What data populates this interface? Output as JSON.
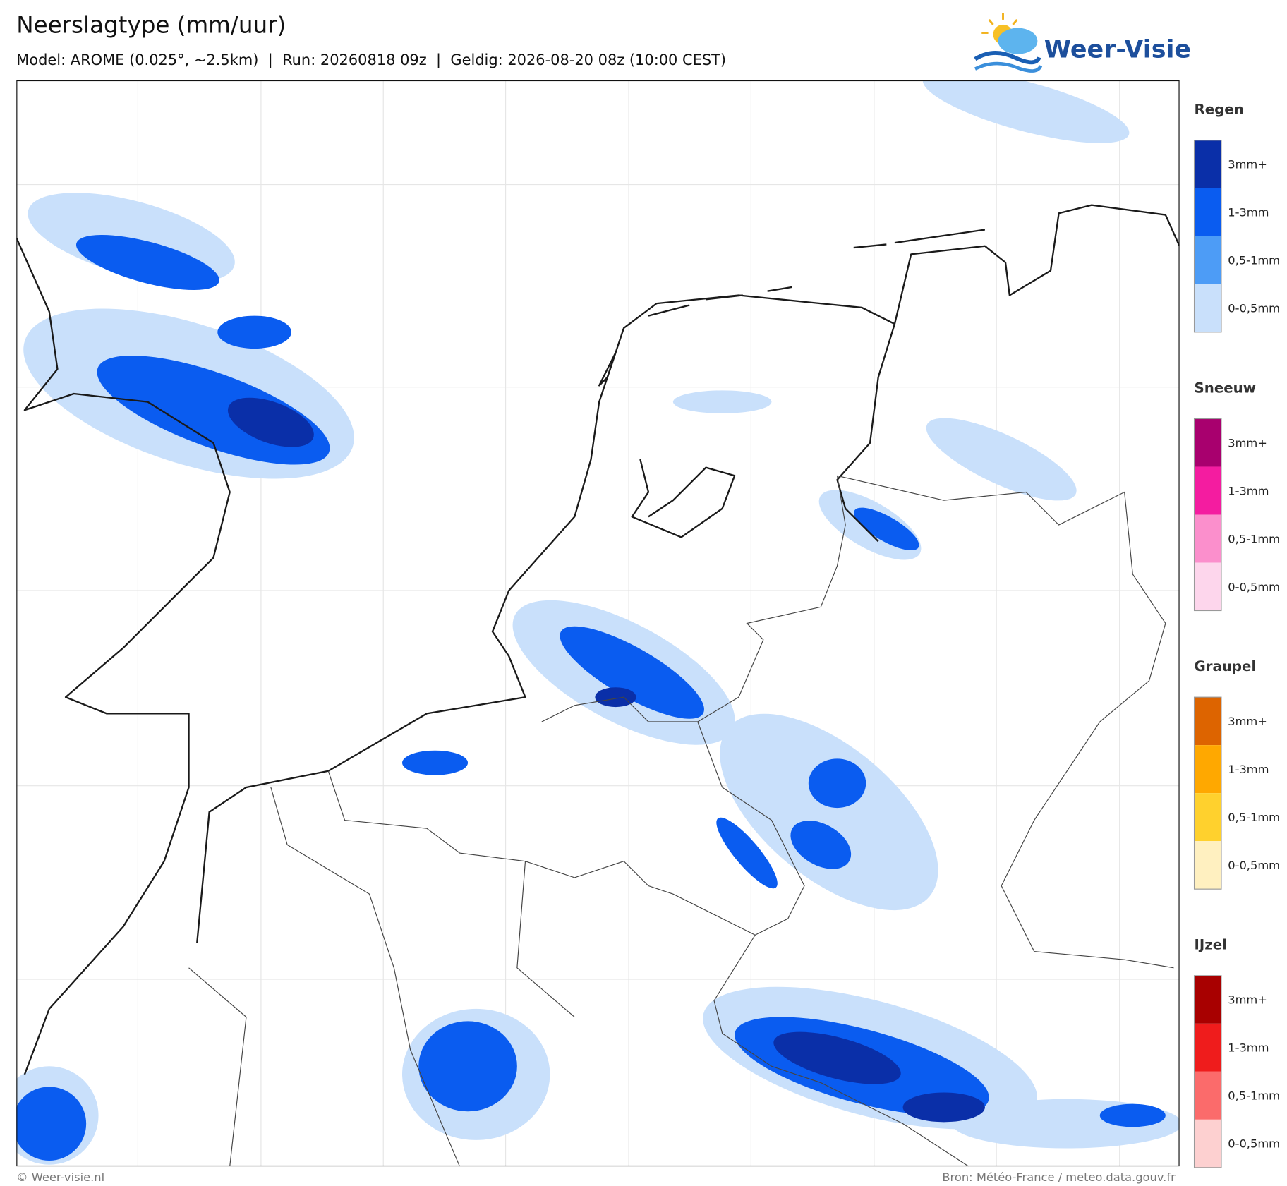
{
  "header": {
    "title": "Neerslagtype (mm/uur)",
    "subtitle": "Model: AROME (0.025°, ~2.5km)  |  Run: 20260818 09z  |  Geldig: 2026-08-20 08z (10:00 CEST)",
    "logo": "Weer-Visie"
  },
  "legend": [
    {
      "title": "Regen",
      "items": [
        {
          "label": "3mm+",
          "color": "#0a2fa8"
        },
        {
          "label": "1-3mm",
          "color": "#0a5cf0"
        },
        {
          "label": "0,5-1mm",
          "color": "#4d9cf6"
        },
        {
          "label": "0-0,5mm",
          "color": "#c9e0fb"
        }
      ]
    },
    {
      "title": "Sneeuw",
      "items": [
        {
          "label": "3mm+",
          "color": "#a8006e"
        },
        {
          "label": "1-3mm",
          "color": "#f41ca0"
        },
        {
          "label": "0,5-1mm",
          "color": "#fb8fcc"
        },
        {
          "label": "0-0,5mm",
          "color": "#fdd6ec"
        }
      ]
    },
    {
      "title": "Graupel",
      "items": [
        {
          "label": "3mm+",
          "color": "#dd6400"
        },
        {
          "label": "1-3mm",
          "color": "#ffa800"
        },
        {
          "label": "0,5-1mm",
          "color": "#ffd12d"
        },
        {
          "label": "0-0,5mm",
          "color": "#fff0c0"
        }
      ]
    },
    {
      "title": "IJzel",
      "items": [
        {
          "label": "3mm+",
          "color": "#a80000"
        },
        {
          "label": "1-3mm",
          "color": "#ef1c1c"
        },
        {
          "label": "0,5-1mm",
          "color": "#fb6b6b"
        },
        {
          "label": "0-0,5mm",
          "color": "#fdd0d0"
        }
      ]
    }
  ],
  "footer": {
    "left": "© Weer-visie.nl",
    "right": "Bron: Météo-France / meteo.data.gouv.fr"
  }
}
